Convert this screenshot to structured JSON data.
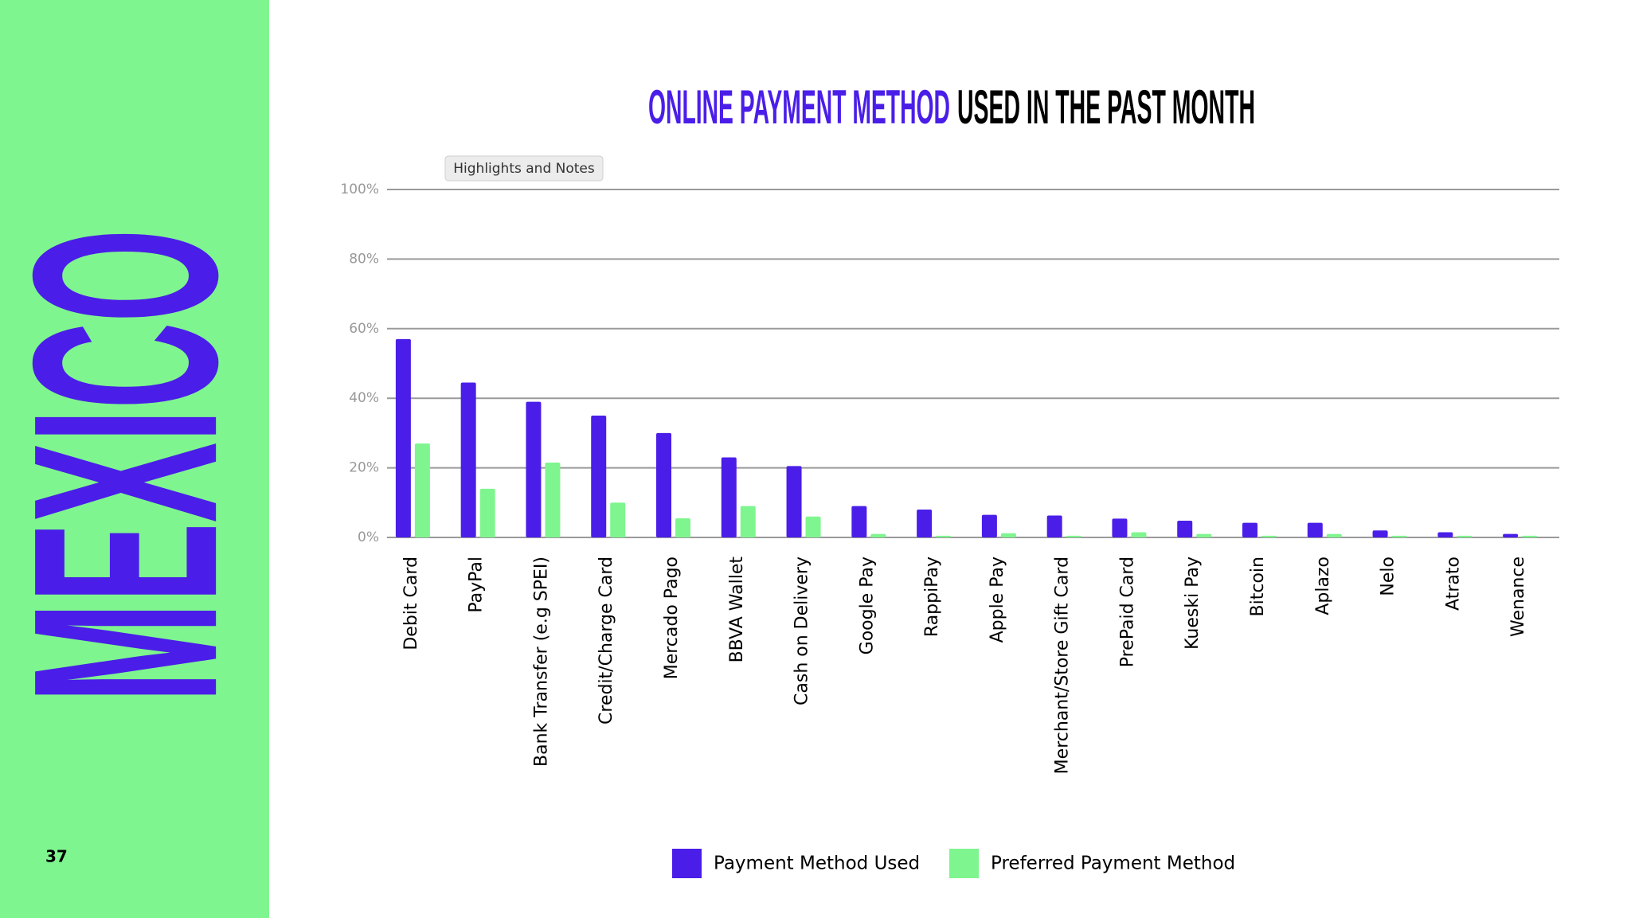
{
  "page": {
    "section": "MEXICO",
    "number": "37",
    "button": "Highlights and Notes"
  },
  "chart_data": {
    "type": "bar",
    "title": {
      "highlight": "ONLINE PAYMENT METHOD",
      "rest": "USED IN THE PAST MONTH"
    },
    "categories": [
      "Debit Card",
      "PayPal",
      "Bank Transfer (e.g SPEI)",
      "Credit/Charge Card",
      "Mercado Pago",
      "BBVA Wallet",
      "Cash on Delivery",
      "Google Pay",
      "RappiPay",
      "Apple Pay",
      "Merchant/Store Gift Card",
      "PrePaid Card",
      "Kueski Pay",
      "Bitcoin",
      "Aplazo",
      "Nelo",
      "Atrato",
      "Wenance"
    ],
    "series": [
      {
        "name": "Payment Method Used",
        "color": "#4a1ee8",
        "values": [
          57,
          44.5,
          39,
          35,
          30,
          23,
          20.5,
          9,
          8,
          6.5,
          6.3,
          5.4,
          4.8,
          4.2,
          4.2,
          2,
          1.5,
          1
        ]
      },
      {
        "name": "Preferred Payment Method",
        "color": "#7ff58f",
        "values": [
          27,
          14,
          21.5,
          10,
          5.5,
          9,
          6,
          1,
          0.5,
          1.2,
          0.5,
          1.5,
          1,
          0.5,
          1,
          0.5,
          0.5,
          0.5
        ]
      }
    ],
    "ylim": [
      0,
      100
    ],
    "yticks": [
      {
        "value": 0,
        "label": "0%"
      },
      {
        "value": 20,
        "label": "20%"
      },
      {
        "value": 40,
        "label": "40%"
      },
      {
        "value": 60,
        "label": "60%"
      },
      {
        "value": 80,
        "label": "80%"
      },
      {
        "value": 100,
        "label": "100%"
      }
    ],
    "grid": true,
    "legend": "bottom"
  }
}
